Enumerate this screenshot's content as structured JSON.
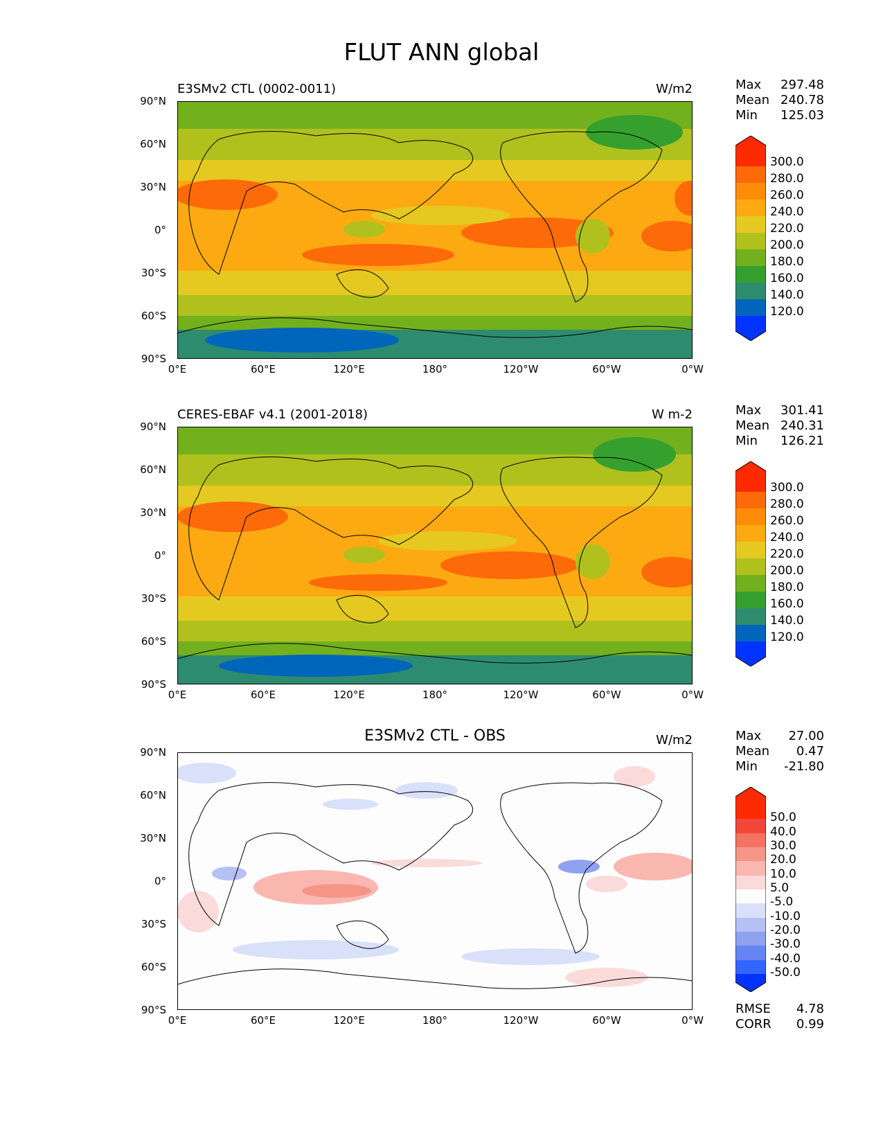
{
  "figure_title": "FLUT ANN global",
  "axes": {
    "lat_ticks": [
      "90°N",
      "60°N",
      "30°N",
      "0°",
      "30°S",
      "60°S",
      "90°S"
    ],
    "lon_ticks": [
      "0°E",
      "60°E",
      "120°E",
      "180°",
      "120°W",
      "60°W",
      "0°W"
    ]
  },
  "panels": [
    {
      "title": "E3SMv2 CTL (0002-0011)",
      "units": "W/m2",
      "stats": {
        "max_label": "Max",
        "max": "297.48",
        "mean_label": "Mean",
        "mean": "240.78",
        "min_label": "Min",
        "min": "125.03"
      },
      "colorbar_labels": [
        "300.0",
        "280.0",
        "260.0",
        "240.0",
        "220.0",
        "200.0",
        "180.0",
        "160.0",
        "140.0",
        "120.0"
      ]
    },
    {
      "title": "CERES-EBAF v4.1 (2001-2018)",
      "units": "W m-2",
      "stats": {
        "max_label": "Max",
        "max": "301.41",
        "mean_label": "Mean",
        "mean": "240.31",
        "min_label": "Min",
        "min": "126.21"
      },
      "colorbar_labels": [
        "300.0",
        "280.0",
        "260.0",
        "240.0",
        "220.0",
        "200.0",
        "180.0",
        "160.0",
        "140.0",
        "120.0"
      ]
    },
    {
      "title": "E3SMv2 CTL - OBS",
      "units": "W/m2",
      "stats": {
        "max_label": "Max",
        "max": "27.00",
        "mean_label": "Mean",
        "mean": "0.47",
        "min_label": "Min",
        "min": "-21.80"
      },
      "colorbar_labels": [
        "50.0",
        "40.0",
        "30.0",
        "20.0",
        "10.0",
        "5.0",
        "-5.0",
        "-10.0",
        "-20.0",
        "-30.0",
        "-40.0",
        "-50.0"
      ],
      "extra": {
        "rmse_label": "RMSE",
        "rmse": "4.78",
        "corr_label": "CORR",
        "corr": "0.99"
      }
    }
  ],
  "colors": {
    "abs_scale": [
      "#0033ff",
      "#0066bb",
      "#2e8c6e",
      "#35a02d",
      "#72b01e",
      "#b0c11e",
      "#e5c920",
      "#fdaa12",
      "#fd8c08",
      "#fd6a0a",
      "#ff2a00"
    ],
    "diff_scale": [
      "#0033ff",
      "#3366ff",
      "#6685f5",
      "#8fa2f0",
      "#b5c1f5",
      "#d9e0fa",
      "#fdfdfd",
      "#fbdada",
      "#f9b7b0",
      "#f69587",
      "#f47360",
      "#f0473a",
      "#ff2a00"
    ]
  }
}
